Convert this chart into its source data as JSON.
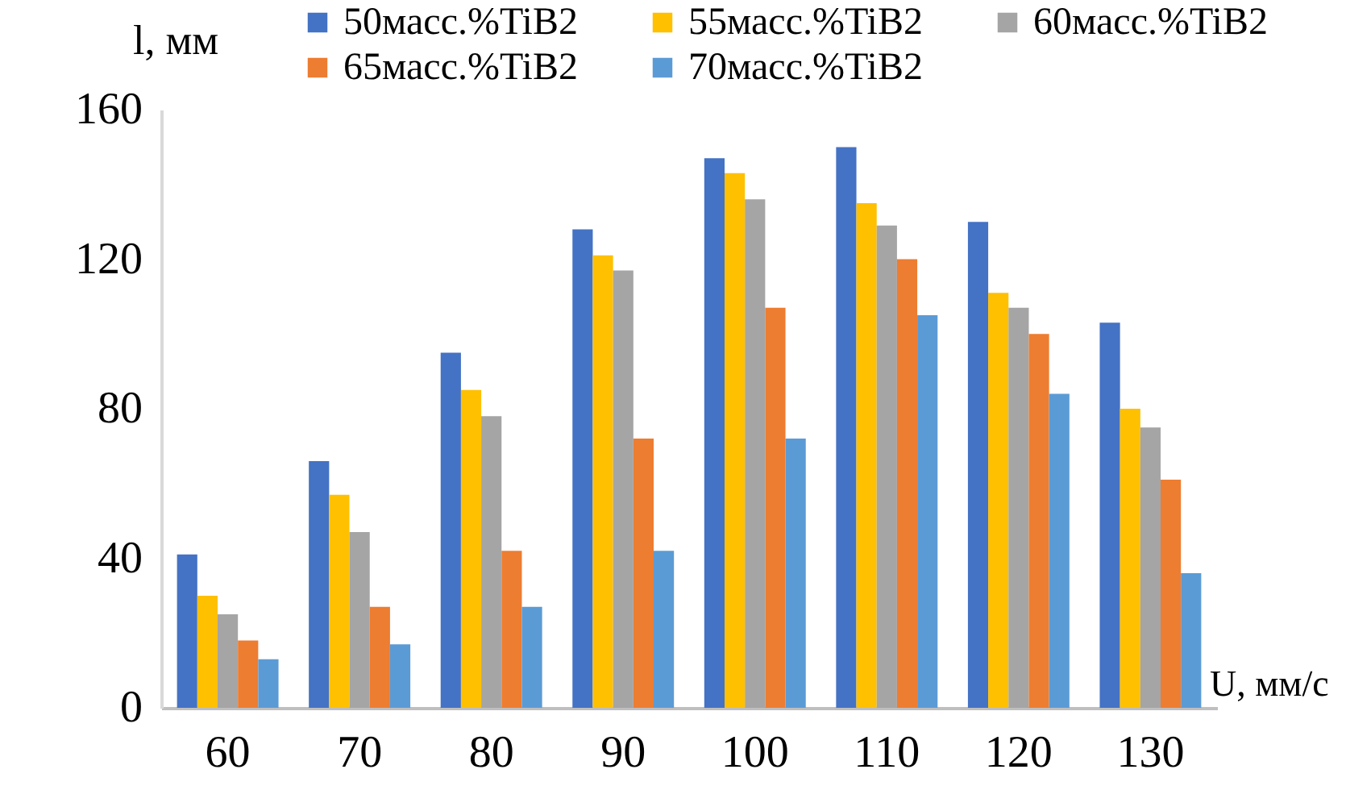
{
  "chart_data": {
    "type": "bar",
    "xlabel": "U, мм/с",
    "ylabel": "l, мм",
    "categories": [
      "60",
      "70",
      "80",
      "90",
      "100",
      "110",
      "120",
      "130"
    ],
    "series": [
      {
        "name": "50масс.%TiB2",
        "color": "#4472c4",
        "values": [
          41,
          66,
          95,
          128,
          147,
          150,
          130,
          103
        ]
      },
      {
        "name": "55масс.%TiB2",
        "color": "#ffc000",
        "values": [
          30,
          57,
          85,
          121,
          143,
          135,
          111,
          80
        ]
      },
      {
        "name": "60масс.%TiB2",
        "color": "#a5a5a5",
        "values": [
          25,
          47,
          78,
          117,
          136,
          129,
          107,
          75
        ]
      },
      {
        "name": "65масс.%TiB2",
        "color": "#ed7d31",
        "values": [
          18,
          27,
          42,
          72,
          107,
          120,
          100,
          61
        ]
      },
      {
        "name": "70масс.%TiB2",
        "color": "#5b9bd5",
        "values": [
          13,
          17,
          27,
          42,
          72,
          105,
          84,
          36
        ]
      }
    ],
    "ylim": [
      0,
      160
    ],
    "yticks": [
      0,
      40,
      80,
      120,
      160
    ],
    "grid": false,
    "legend": "top"
  }
}
